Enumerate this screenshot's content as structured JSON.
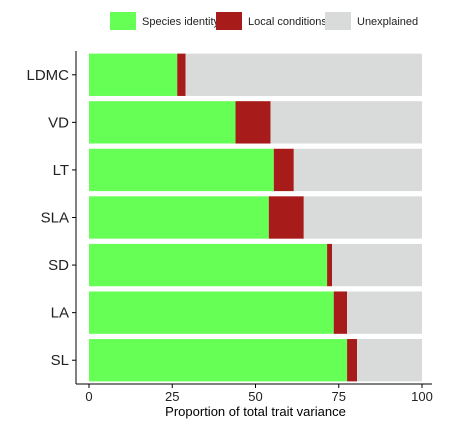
{
  "chart_data": {
    "type": "bar",
    "orientation": "horizontal",
    "stacked": true,
    "categories": [
      "LDMC",
      "VD",
      "LT",
      "SLA",
      "SD",
      "LA",
      "SL"
    ],
    "series": [
      {
        "name": "Species identity",
        "color": "#66ff55",
        "values": [
          26.5,
          44,
          55.5,
          54,
          71.5,
          73.5,
          77.5
        ]
      },
      {
        "name": "Local conditions",
        "color": "#a81b1b",
        "values": [
          2.5,
          10.5,
          6,
          10.5,
          1.5,
          4,
          3
        ]
      },
      {
        "name": "Unexplained",
        "color": "#d9dbdb",
        "values": [
          71,
          45.5,
          38.5,
          35.5,
          27,
          22.5,
          19.5
        ]
      }
    ],
    "xlabel": "Proportion of total trait variance",
    "ylabel": "",
    "xlim": [
      0,
      100
    ],
    "xticks": [
      0,
      25,
      50,
      75,
      100
    ],
    "legend_position": "top",
    "grid": false
  }
}
